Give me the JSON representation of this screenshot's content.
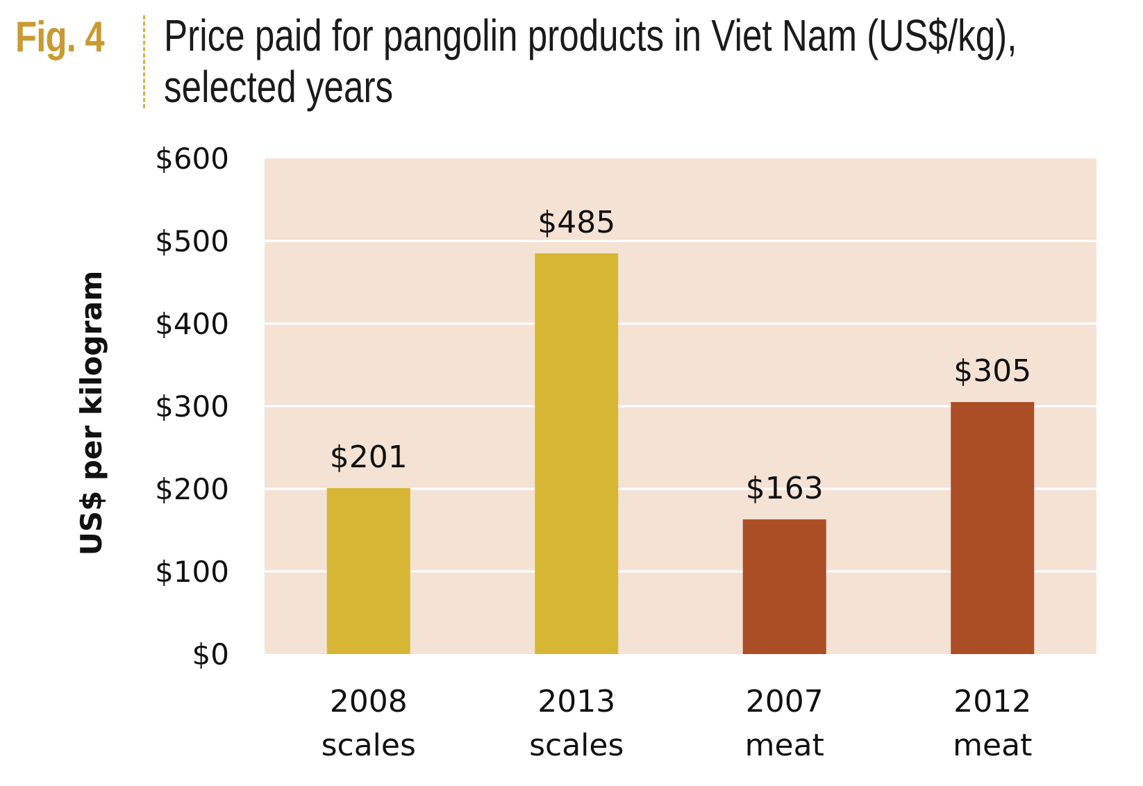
{
  "figure": {
    "label": "Fig. 4",
    "title": "Price paid for pangolin products in Viet Nam (US$/kg), selected years"
  },
  "colors": {
    "plot_background": "#f4e2d5",
    "gridline": "#ffffff",
    "scales": "#d7b636",
    "meat": "#ab4e25",
    "fig_label": "#c89a30"
  },
  "chart_data": {
    "type": "bar",
    "categories": [
      [
        "2008",
        "scales"
      ],
      [
        "2013",
        "scales"
      ],
      [
        "2007",
        "meat"
      ],
      [
        "2012",
        "meat"
      ]
    ],
    "values": [
      201,
      485,
      163,
      305
    ],
    "data_labels": [
      "$201",
      "$485",
      "$163",
      "$305"
    ],
    "bar_groups": [
      "scales",
      "scales",
      "meat",
      "meat"
    ],
    "ylabel": "US$ per kilogram",
    "ylim": [
      0,
      600
    ],
    "yticks": [
      0,
      100,
      200,
      300,
      400,
      500,
      600
    ],
    "ytick_labels": [
      "$0",
      "$100",
      "$200",
      "$300",
      "$400",
      "$500",
      "$600"
    ],
    "grid": true,
    "legend": "none"
  }
}
